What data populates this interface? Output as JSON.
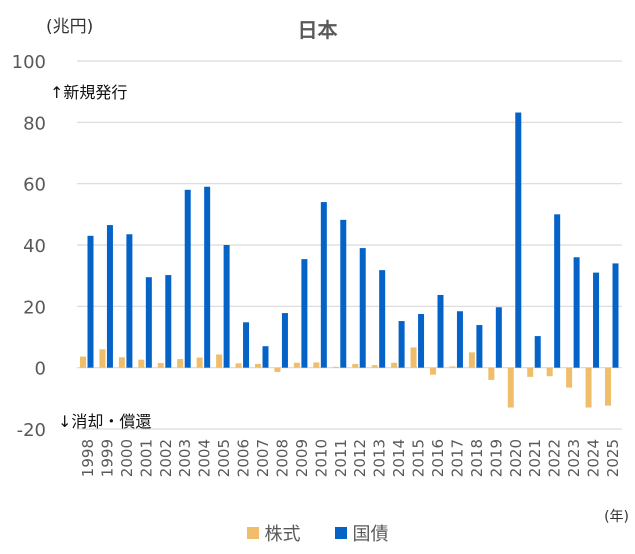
{
  "header": {
    "title": "日本",
    "unit_label": "(兆円)",
    "x_unit_label": "(年)"
  },
  "annotations": {
    "up": "↑新規発行",
    "down": "↓消却・償還"
  },
  "legend": [
    {
      "label": "株式",
      "color": "#f0be6a"
    },
    {
      "label": "国債",
      "color": "#0563c8"
    }
  ],
  "colors": {
    "stocks": "#f0be6a",
    "bonds": "#0563c8",
    "grid": "#d9d9d9",
    "tick_text": "#595959"
  },
  "chart_data": {
    "type": "bar",
    "title": "日本",
    "xlabel": "(年)",
    "ylabel": "(兆円)",
    "ylim": [
      -20,
      100
    ],
    "yticks": [
      -20,
      0,
      20,
      40,
      60,
      80,
      100
    ],
    "grid": true,
    "legend_position": "bottom",
    "annotations": [
      "↑新規発行",
      "↓消却・償還"
    ],
    "categories": [
      "1998",
      "1999",
      "2000",
      "2001",
      "2002",
      "2003",
      "2004",
      "2005",
      "2006",
      "2007",
      "2008",
      "2009",
      "2010",
      "2011",
      "2012",
      "2013",
      "2014",
      "2015",
      "2016",
      "2017",
      "2018",
      "2019",
      "2020",
      "2021",
      "2022",
      "2023",
      "2024",
      "2025"
    ],
    "series": [
      {
        "name": "株式",
        "color": "#f0be6a",
        "values": [
          3.6,
          6.0,
          3.4,
          2.6,
          1.5,
          2.8,
          3.3,
          4.3,
          1.4,
          1.2,
          -1.4,
          1.6,
          1.7,
          0.3,
          1.2,
          0.8,
          1.6,
          6.6,
          -2.3,
          0.4,
          5.0,
          -4.0,
          -13.0,
          -3.0,
          -2.8,
          -6.5,
          -13.0,
          -12.4
        ]
      },
      {
        "name": "国債",
        "color": "#0563c8",
        "values": [
          43.0,
          46.5,
          43.5,
          29.5,
          30.2,
          58.0,
          59.0,
          40.0,
          14.8,
          7.0,
          17.8,
          35.4,
          54.0,
          48.2,
          39.0,
          31.8,
          15.2,
          17.5,
          23.7,
          18.4,
          13.9,
          19.7,
          83.2,
          10.3,
          50.0,
          36.0,
          31.0,
          34.0
        ]
      }
    ]
  }
}
